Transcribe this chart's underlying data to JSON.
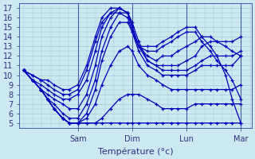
{
  "title": "",
  "xlabel": "Température (°c)",
  "ylabel": "",
  "background_color": "#cce8f0",
  "grid_color": "#a0c8d8",
  "line_color": "#0000bb",
  "ylim": [
    4.5,
    17.5
  ],
  "yticks": [
    5,
    6,
    7,
    8,
    9,
    10,
    11,
    12,
    13,
    14,
    15,
    16,
    17
  ],
  "xtick_labels": [
    "Sam",
    "Dim",
    "Lun",
    "Mar"
  ],
  "xtick_positions": [
    0.25,
    0.5,
    0.75,
    1.0
  ],
  "vlines": [
    0.25,
    0.5,
    0.75,
    1.0
  ],
  "xlim": [
    -0.02,
    1.05
  ],
  "series": [
    {
      "x": [
        0.0,
        0.04,
        0.08,
        0.11,
        0.14,
        0.18,
        0.21,
        0.25,
        0.29,
        0.33,
        0.36,
        0.4,
        0.44,
        0.48,
        0.5,
        0.53,
        0.57,
        0.61,
        0.64,
        0.68,
        0.71,
        0.75,
        0.79,
        0.82,
        0.86,
        0.89,
        0.93,
        0.96,
        1.0
      ],
      "y": [
        10.5,
        9.5,
        8.5,
        7.5,
        6.5,
        5.5,
        5.0,
        5.0,
        5.0,
        5.0,
        5.0,
        5.0,
        5.0,
        5.0,
        5.0,
        5.0,
        5.0,
        5.0,
        5.0,
        5.0,
        5.0,
        5.0,
        5.0,
        5.0,
        5.0,
        5.0,
        5.0,
        5.0,
        5.0
      ]
    },
    {
      "x": [
        0.0,
        0.04,
        0.08,
        0.11,
        0.14,
        0.18,
        0.21,
        0.25,
        0.29,
        0.33,
        0.36,
        0.4,
        0.44,
        0.48,
        0.5,
        0.53,
        0.57,
        0.61,
        0.64,
        0.68,
        0.71,
        0.75,
        0.79,
        0.82,
        0.86,
        0.89,
        0.93,
        0.96,
        1.0
      ],
      "y": [
        10.5,
        9.5,
        8.5,
        7.5,
        6.5,
        5.5,
        5.0,
        5.0,
        5.0,
        5.0,
        5.5,
        6.5,
        7.5,
        8.0,
        8.0,
        8.0,
        7.5,
        7.0,
        6.5,
        6.5,
        6.5,
        6.5,
        7.0,
        7.0,
        7.0,
        7.0,
        7.0,
        7.0,
        7.0
      ]
    },
    {
      "x": [
        0.0,
        0.04,
        0.08,
        0.11,
        0.14,
        0.18,
        0.21,
        0.25,
        0.29,
        0.33,
        0.36,
        0.4,
        0.44,
        0.48,
        0.5,
        0.53,
        0.57,
        0.61,
        0.64,
        0.68,
        0.71,
        0.75,
        0.79,
        0.82,
        0.86,
        0.89,
        0.93,
        0.96,
        1.0
      ],
      "y": [
        10.5,
        9.5,
        8.5,
        7.5,
        6.5,
        5.5,
        5.0,
        5.0,
        5.5,
        7.0,
        9.0,
        11.0,
        12.5,
        13.0,
        12.5,
        11.0,
        10.0,
        9.5,
        9.0,
        8.5,
        8.5,
        8.5,
        8.5,
        8.5,
        8.5,
        8.5,
        8.5,
        8.5,
        9.0
      ]
    },
    {
      "x": [
        0.0,
        0.04,
        0.08,
        0.11,
        0.14,
        0.18,
        0.21,
        0.25,
        0.29,
        0.33,
        0.36,
        0.4,
        0.44,
        0.48,
        0.5,
        0.53,
        0.57,
        0.61,
        0.64,
        0.68,
        0.71,
        0.75,
        0.79,
        0.82,
        0.86,
        0.89,
        0.93,
        0.96,
        1.0
      ],
      "y": [
        10.5,
        9.5,
        8.5,
        7.5,
        6.5,
        5.5,
        5.0,
        5.0,
        6.0,
        8.5,
        11.5,
        14.0,
        15.5,
        15.5,
        14.5,
        12.5,
        11.0,
        10.5,
        10.0,
        10.0,
        10.0,
        10.0,
        10.5,
        11.0,
        11.0,
        11.0,
        11.0,
        11.0,
        12.0
      ]
    },
    {
      "x": [
        0.0,
        0.04,
        0.08,
        0.11,
        0.14,
        0.18,
        0.21,
        0.25,
        0.29,
        0.33,
        0.36,
        0.4,
        0.44,
        0.48,
        0.5,
        0.53,
        0.57,
        0.61,
        0.64,
        0.68,
        0.71,
        0.75,
        0.79,
        0.82,
        0.86,
        0.89,
        0.93,
        0.96,
        1.0
      ],
      "y": [
        10.5,
        9.5,
        8.5,
        7.5,
        7.0,
        6.0,
        5.5,
        5.5,
        7.0,
        9.5,
        12.5,
        15.0,
        16.5,
        16.5,
        15.5,
        13.5,
        11.5,
        11.0,
        10.5,
        10.5,
        10.5,
        10.5,
        11.0,
        11.5,
        12.0,
        12.0,
        12.0,
        12.0,
        12.5
      ]
    },
    {
      "x": [
        0.0,
        0.04,
        0.08,
        0.11,
        0.14,
        0.18,
        0.21,
        0.25,
        0.29,
        0.33,
        0.36,
        0.4,
        0.44,
        0.48,
        0.5,
        0.53,
        0.57,
        0.61,
        0.64,
        0.68,
        0.71,
        0.75,
        0.79,
        0.82,
        0.86,
        0.89,
        0.93,
        0.96,
        1.0
      ],
      "y": [
        10.5,
        9.5,
        8.5,
        8.0,
        7.5,
        7.0,
        6.5,
        6.5,
        8.0,
        11.0,
        14.0,
        16.0,
        17.0,
        16.5,
        15.0,
        13.0,
        11.5,
        11.0,
        11.0,
        11.0,
        11.0,
        11.5,
        12.0,
        13.0,
        13.5,
        13.5,
        13.5,
        13.5,
        14.0
      ]
    },
    {
      "x": [
        0.0,
        0.04,
        0.08,
        0.11,
        0.14,
        0.18,
        0.21,
        0.25,
        0.29,
        0.33,
        0.36,
        0.4,
        0.44,
        0.48,
        0.5,
        0.53,
        0.57,
        0.61,
        0.64,
        0.68,
        0.71,
        0.75,
        0.79,
        0.82,
        0.86,
        0.89,
        0.93,
        0.96,
        1.0
      ],
      "y": [
        10.5,
        9.5,
        9.0,
        8.5,
        8.0,
        7.5,
        7.5,
        8.0,
        9.5,
        12.5,
        15.0,
        16.5,
        17.0,
        16.5,
        15.0,
        13.0,
        12.0,
        11.5,
        12.0,
        12.0,
        12.5,
        13.0,
        13.5,
        14.0,
        14.0,
        13.5,
        13.0,
        12.5,
        12.0
      ]
    },
    {
      "x": [
        0.0,
        0.04,
        0.08,
        0.11,
        0.14,
        0.18,
        0.21,
        0.25,
        0.29,
        0.33,
        0.36,
        0.4,
        0.44,
        0.48,
        0.5,
        0.53,
        0.57,
        0.61,
        0.64,
        0.68,
        0.71,
        0.75,
        0.79,
        0.82,
        0.86,
        0.89,
        0.93,
        0.96,
        1.0
      ],
      "y": [
        10.5,
        10.0,
        9.5,
        9.0,
        8.5,
        8.0,
        8.0,
        8.5,
        10.5,
        13.5,
        15.5,
        16.5,
        16.5,
        16.0,
        14.5,
        13.0,
        12.5,
        12.5,
        13.0,
        13.5,
        14.0,
        14.5,
        14.5,
        13.5,
        12.5,
        11.5,
        10.5,
        9.5,
        7.5
      ]
    },
    {
      "x": [
        0.0,
        0.04,
        0.08,
        0.11,
        0.14,
        0.18,
        0.21,
        0.25,
        0.29,
        0.33,
        0.36,
        0.4,
        0.44,
        0.48,
        0.5,
        0.53,
        0.57,
        0.61,
        0.64,
        0.68,
        0.71,
        0.75,
        0.79,
        0.82,
        0.86,
        0.89,
        0.93,
        0.96,
        1.0
      ],
      "y": [
        10.5,
        10.0,
        9.5,
        9.5,
        9.0,
        8.5,
        8.5,
        9.0,
        11.0,
        14.0,
        16.0,
        17.0,
        17.0,
        16.5,
        15.0,
        13.0,
        13.0,
        13.0,
        13.5,
        14.0,
        14.5,
        15.0,
        15.0,
        14.0,
        13.0,
        12.0,
        10.0,
        7.5,
        5.0
      ]
    }
  ]
}
